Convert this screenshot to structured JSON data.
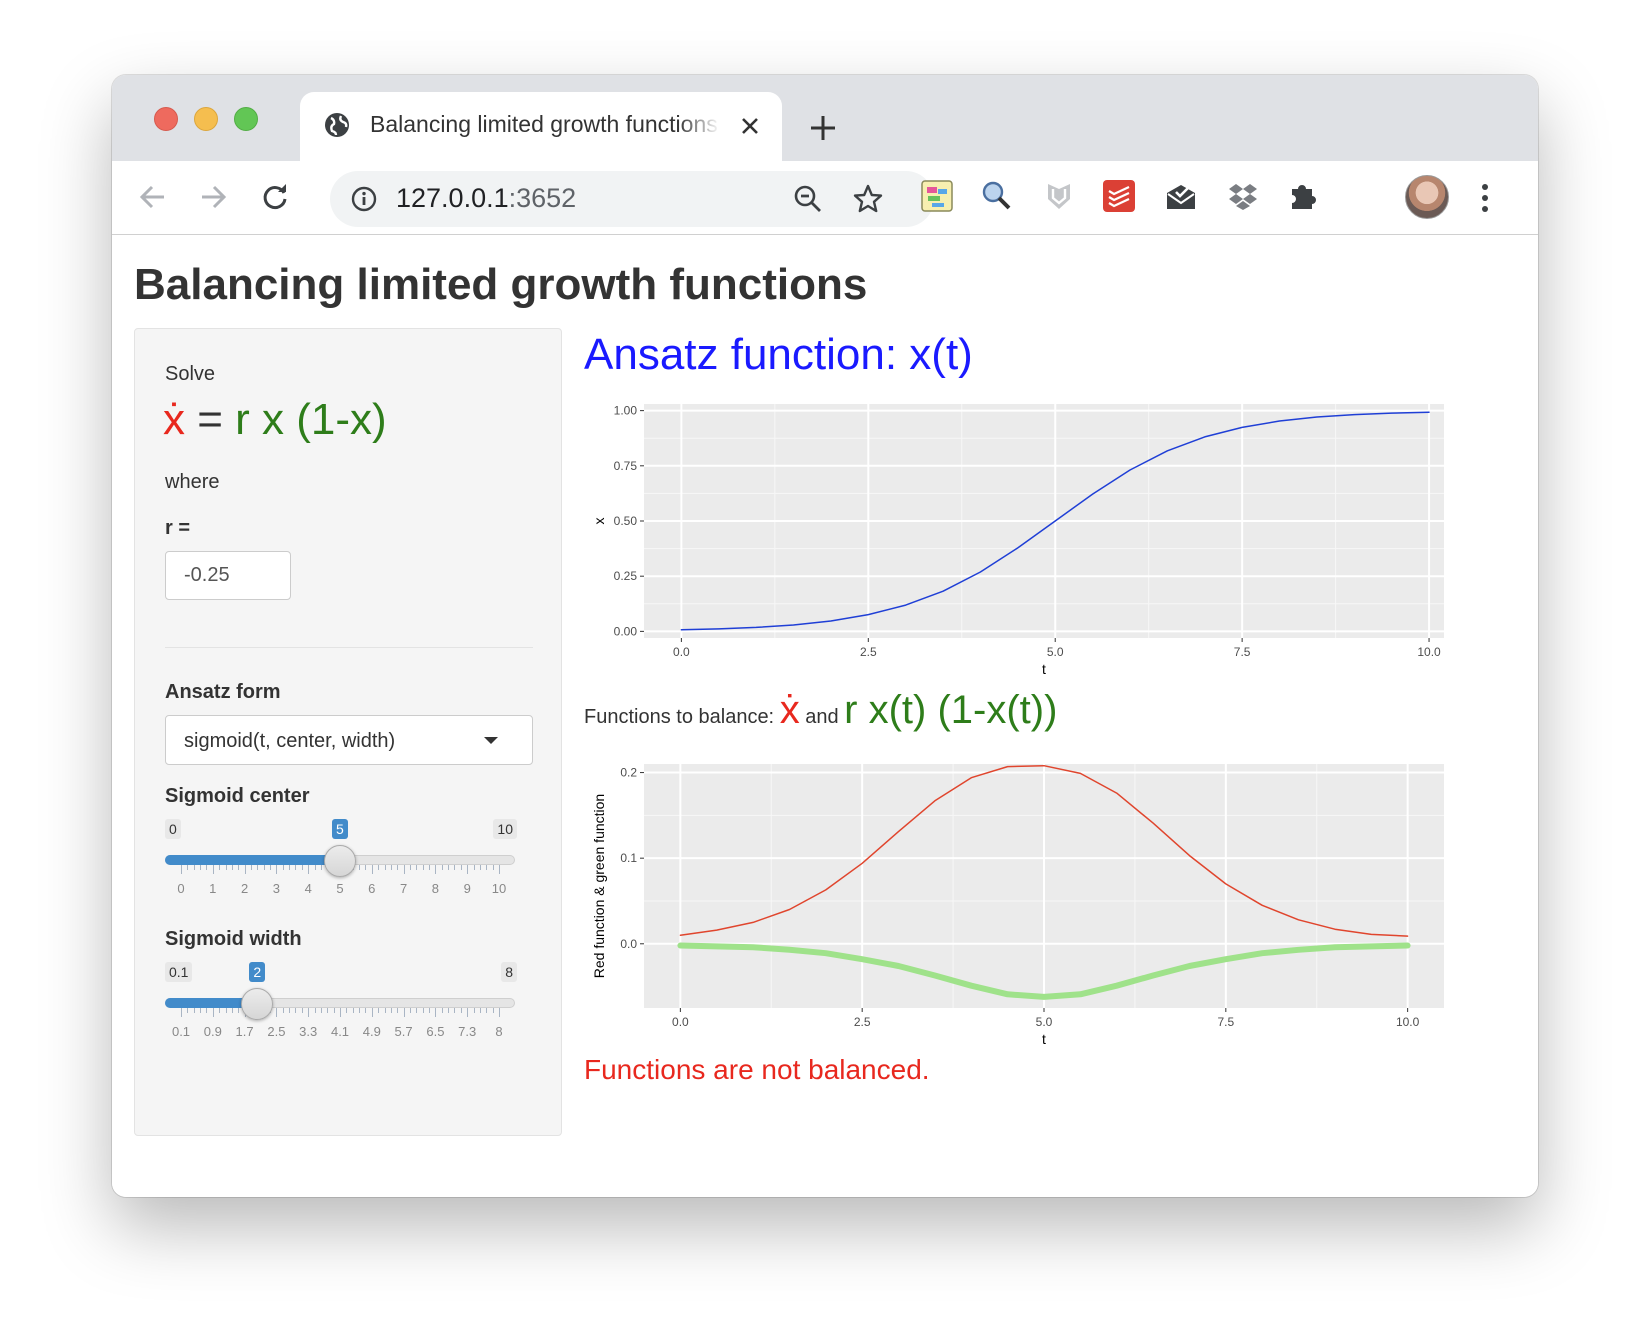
{
  "browser": {
    "tab_title": "Balancing limited growth functions",
    "url_host": "127.0.0.1",
    "url_port": ":3652"
  },
  "page": {
    "title": "Balancing limited growth functions"
  },
  "sidebar": {
    "solve_label": "Solve",
    "eq_lhs": "ẋ",
    "eq_equals": " = ",
    "eq_rhs": "r x (1-x)",
    "where_label": "where",
    "r_label": "r =",
    "r_value": "-0.25",
    "form_label": "Ansatz form",
    "form_selected": "sigmoid(t, center, width)",
    "center_slider": {
      "label": "Sigmoid center",
      "min": "0",
      "max": "10",
      "value": "5",
      "fraction": 0.5,
      "tick_labels": [
        "0",
        "1",
        "2",
        "3",
        "4",
        "5",
        "6",
        "7",
        "8",
        "9",
        "10"
      ]
    },
    "width_slider": {
      "label": "Sigmoid width",
      "min": "0.1",
      "max": "8",
      "value": "2",
      "fraction": 0.24,
      "tick_labels": [
        "0.1",
        "0.9",
        "1.7",
        "2.5",
        "3.3",
        "4.1",
        "4.9",
        "5.7",
        "6.5",
        "7.3",
        "8"
      ]
    }
  },
  "main": {
    "title": "Ansatz function: x(t)",
    "balance_prefix": "Functions to balance: ",
    "balance_red": "ẋ",
    "balance_and": " and ",
    "balance_green": "r x(t) (1-x(t))",
    "status": "Functions are not balanced."
  },
  "colors": {
    "blue_line": "#1f3fd6",
    "red_line": "#e0452d",
    "green_line": "#9fe28a",
    "panel_bg": "#ebebeb"
  },
  "chart_data": [
    {
      "type": "line",
      "title": "",
      "xlabel": "t",
      "ylabel": "x",
      "xlim": [
        -0.5,
        10.2
      ],
      "ylim": [
        -0.03,
        1.03
      ],
      "xticks": [
        0.0,
        2.5,
        5.0,
        7.5,
        10.0
      ],
      "xtick_labels": [
        "0.0",
        "2.5",
        "5.0",
        "7.5",
        "10.0"
      ],
      "yticks": [
        0.0,
        0.25,
        0.5,
        0.75,
        1.0
      ],
      "ytick_labels": [
        "0.00",
        "0.25",
        "0.50",
        "0.75",
        "1.00"
      ],
      "series": [
        {
          "name": "x(t)",
          "color": "#1f3fd6",
          "x": [
            0,
            0.5,
            1,
            1.5,
            2,
            2.5,
            3,
            3.5,
            4,
            4.5,
            5,
            5.5,
            6,
            6.5,
            7,
            7.5,
            8,
            8.5,
            9,
            9.5,
            10
          ],
          "y": [
            0.007,
            0.011,
            0.018,
            0.029,
            0.047,
            0.076,
            0.119,
            0.182,
            0.269,
            0.378,
            0.5,
            0.622,
            0.731,
            0.818,
            0.881,
            0.924,
            0.953,
            0.971,
            0.982,
            0.989,
            0.993
          ]
        }
      ]
    },
    {
      "type": "line",
      "title": "",
      "xlabel": "t",
      "ylabel": "Red function & green function",
      "xlim": [
        -0.5,
        10.5
      ],
      "ylim": [
        -0.075,
        0.21
      ],
      "xticks": [
        0.0,
        2.5,
        5.0,
        7.5,
        10.0
      ],
      "xtick_labels": [
        "0.0",
        "2.5",
        "5.0",
        "7.5",
        "10.0"
      ],
      "yticks": [
        0.0,
        0.1,
        0.2
      ],
      "ytick_labels": [
        "0.0",
        "0.1",
        "0.2"
      ],
      "series": [
        {
          "name": "red function",
          "color": "#e0452d",
          "x": [
            0,
            0.5,
            1,
            1.5,
            2,
            2.5,
            3,
            3.5,
            4,
            4.5,
            5,
            5.5,
            6,
            6.5,
            7,
            7.5,
            8,
            8.5,
            9,
            9.5,
            10
          ],
          "y": [
            0.01,
            0.016,
            0.025,
            0.04,
            0.063,
            0.094,
            0.131,
            0.167,
            0.194,
            0.207,
            0.208,
            0.199,
            0.176,
            0.141,
            0.103,
            0.07,
            0.045,
            0.028,
            0.017,
            0.011,
            0.009
          ]
        },
        {
          "name": "green function",
          "color": "#9fe28a",
          "x": [
            0,
            0.5,
            1,
            1.5,
            2,
            2.5,
            3,
            3.5,
            4,
            4.5,
            5,
            5.5,
            6,
            6.5,
            7,
            7.5,
            8,
            8.5,
            9,
            9.5,
            10
          ],
          "y": [
            -0.002,
            -0.003,
            -0.004,
            -0.007,
            -0.011,
            -0.018,
            -0.026,
            -0.037,
            -0.049,
            -0.059,
            -0.062,
            -0.059,
            -0.049,
            -0.037,
            -0.026,
            -0.018,
            -0.011,
            -0.007,
            -0.004,
            -0.003,
            -0.002
          ]
        }
      ]
    }
  ]
}
